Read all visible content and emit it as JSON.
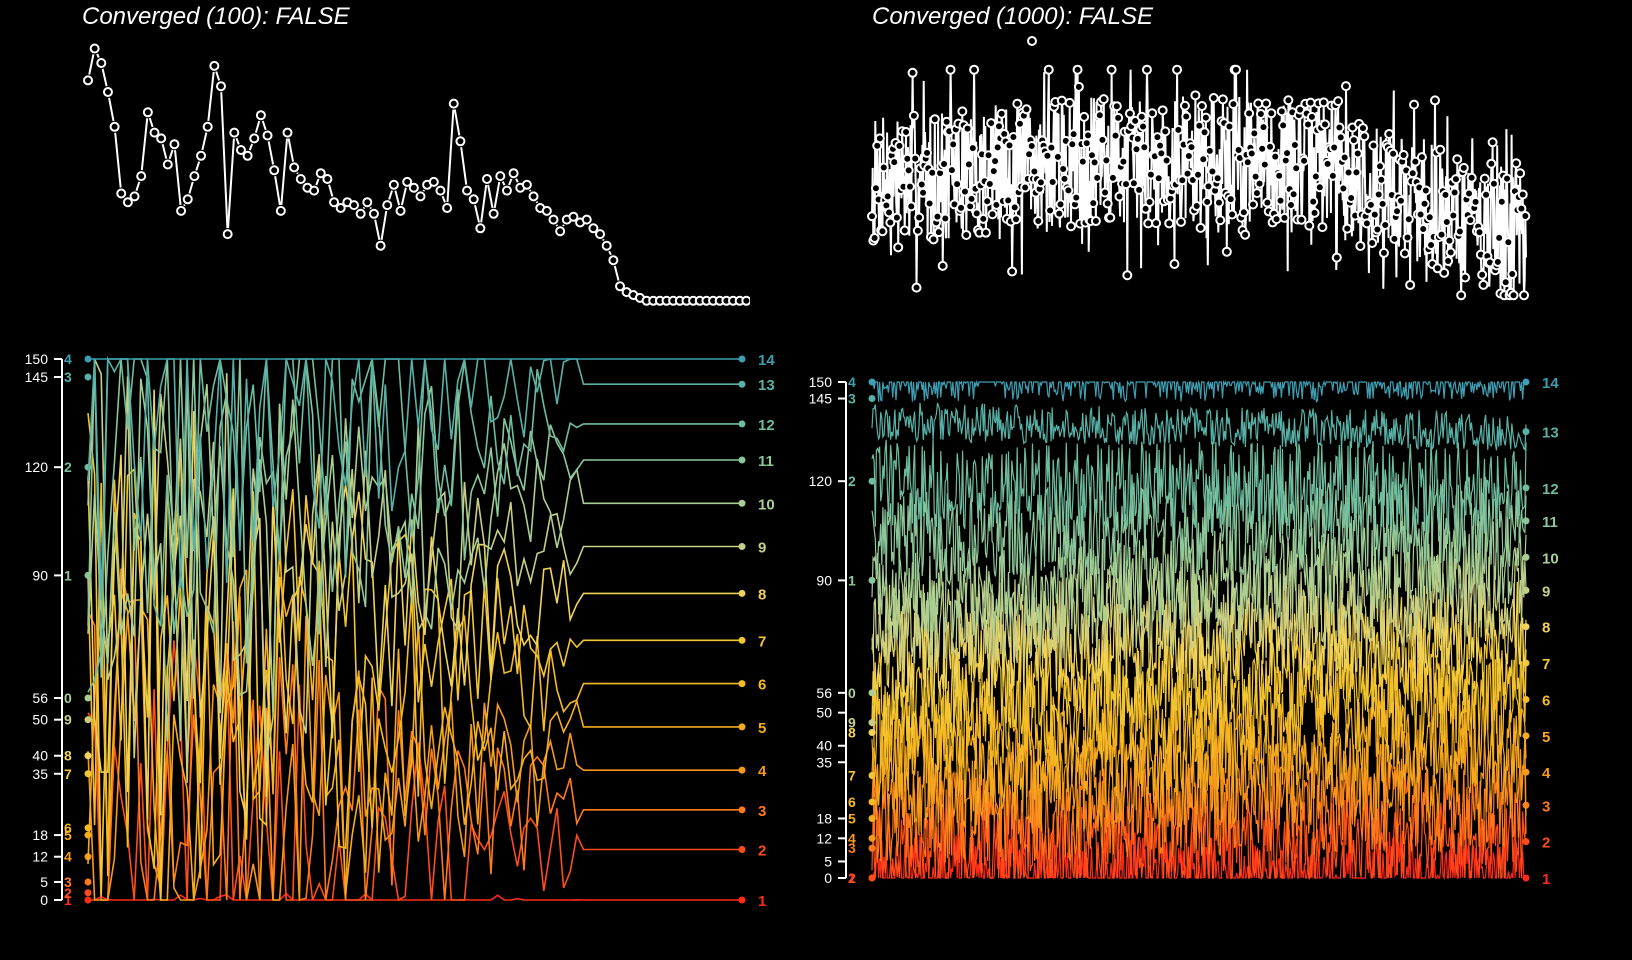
{
  "chart_data": [
    {
      "type": "scatter",
      "title": "Converged (100): FALSE",
      "marker": "open-circle-with-line",
      "color": "#ffffff",
      "x_range": [
        1,
        100
      ],
      "values": [
        0.84,
        0.95,
        0.9,
        0.8,
        0.68,
        0.45,
        0.42,
        0.44,
        0.51,
        0.73,
        0.66,
        0.64,
        0.55,
        0.62,
        0.39,
        0.43,
        0.51,
        0.58,
        0.68,
        0.89,
        0.82,
        0.31,
        0.66,
        0.6,
        0.58,
        0.64,
        0.72,
        0.65,
        0.53,
        0.39,
        0.66,
        0.54,
        0.5,
        0.47,
        0.46,
        0.52,
        0.5,
        0.42,
        0.4,
        0.42,
        0.41,
        0.38,
        0.42,
        0.38,
        0.27,
        0.41,
        0.48,
        0.39,
        0.49,
        0.47,
        0.44,
        0.48,
        0.49,
        0.46,
        0.4,
        0.76,
        0.63,
        0.46,
        0.43,
        0.33,
        0.5,
        0.38,
        0.51,
        0.46,
        0.52,
        0.47,
        0.48,
        0.44,
        0.4,
        0.39,
        0.36,
        0.32,
        0.36,
        0.37,
        0.35,
        0.36,
        0.33,
        0.31,
        0.27,
        0.22,
        0.13,
        0.11,
        0.1,
        0.09,
        0.08
      ],
      "tail_value": 0.08
    },
    {
      "type": "scatter",
      "title": "Converged (1000): FALSE",
      "marker": "open-circle-with-line",
      "color": "#ffffff",
      "x_range": [
        1,
        1000
      ]
    },
    {
      "type": "line",
      "name": "trace-100",
      "y_ticks": [
        150,
        145,
        120,
        90,
        56,
        50,
        40,
        35,
        18,
        12,
        5,
        0
      ],
      "y_range": [
        0,
        150
      ],
      "x_range": [
        1,
        100
      ],
      "series_labels": [
        "1",
        "2",
        "3",
        "4",
        "5",
        "6",
        "7",
        "8",
        "9",
        "10",
        "11",
        "12",
        "13",
        "14"
      ],
      "left_labels": [
        "4",
        "3",
        "2",
        "1",
        "0",
        "9",
        "8",
        "7",
        "6",
        "5",
        "4",
        "3",
        "2",
        "1"
      ],
      "final_values": [
        0,
        14,
        25,
        36,
        48,
        60,
        72,
        85,
        98,
        110,
        122,
        132,
        143,
        150
      ],
      "start_values": [
        150,
        145,
        120,
        90,
        56,
        50,
        40,
        35,
        20,
        18,
        12,
        5,
        2,
        0
      ]
    },
    {
      "type": "line",
      "name": "trace-1000",
      "y_ticks": [
        150,
        145,
        120,
        90,
        56,
        50,
        40,
        35,
        18,
        12,
        5,
        0
      ],
      "y_range": [
        0,
        150
      ],
      "x_range": [
        1,
        1000
      ],
      "series_labels": [
        "1",
        "2",
        "3",
        "4",
        "5",
        "6",
        "7",
        "8",
        "9",
        "10",
        "11",
        "12",
        "13",
        "14"
      ],
      "left_labels": [
        "4",
        "3",
        "2",
        "1",
        "0",
        "9",
        "8",
        "7",
        "6",
        "5",
        "4",
        "3",
        "2",
        "1"
      ],
      "final_values": [
        0,
        11,
        22,
        32,
        43,
        54,
        65,
        76,
        87,
        97,
        108,
        118,
        135,
        150
      ],
      "start_values": [
        150,
        145,
        120,
        90,
        56,
        47,
        44,
        31,
        23,
        18,
        12,
        9,
        0,
        0
      ]
    }
  ],
  "palette": [
    "#ff2a1a",
    "#ff4d1a",
    "#ff7a1a",
    "#f59a1c",
    "#f5ac1f",
    "#f5bb25",
    "#f2c733",
    "#f0d35a",
    "#c8cf85",
    "#a9cf92",
    "#8cc79a",
    "#6fbd9f",
    "#58b1a6",
    "#3e9fb2"
  ]
}
